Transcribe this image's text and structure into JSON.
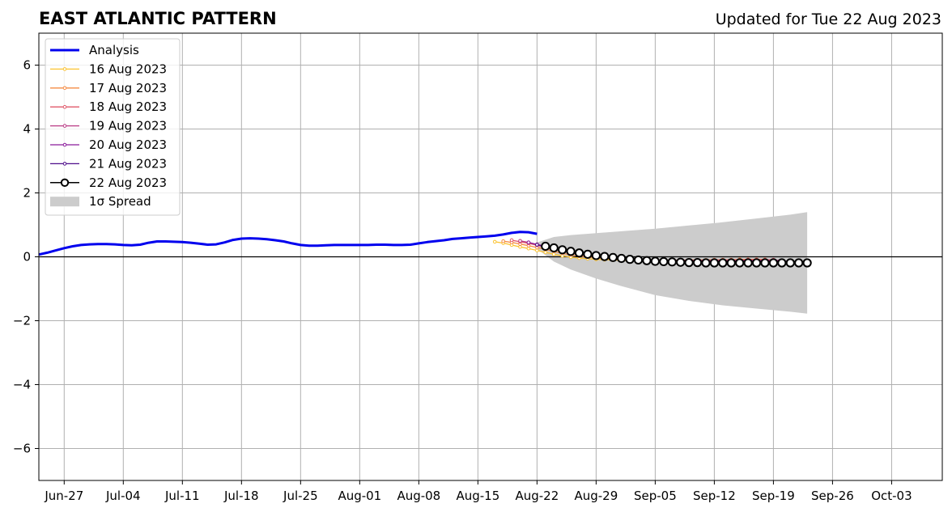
{
  "chart_data": {
    "type": "line",
    "title": "EAST ATLANTIC PATTERN",
    "subtitle": "Updated for Tue 22 Aug 2023",
    "xlabel": "",
    "ylabel": "",
    "x_range": [
      "2023-06-24",
      "2023-10-09"
    ],
    "ylim": [
      -7,
      7
    ],
    "y_ticks": [
      -6,
      -4,
      -2,
      0,
      2,
      4,
      6
    ],
    "y_tick_labels": [
      "−6",
      "−4",
      "−2",
      "0",
      "2",
      "4",
      "6"
    ],
    "x_ticks": [
      "2023-06-27",
      "2023-07-04",
      "2023-07-11",
      "2023-07-18",
      "2023-07-25",
      "2023-08-01",
      "2023-08-08",
      "2023-08-15",
      "2023-08-22",
      "2023-08-29",
      "2023-09-05",
      "2023-09-12",
      "2023-09-19",
      "2023-09-26",
      "2023-10-03"
    ],
    "x_tick_labels": [
      "Jun-27",
      "Jul-04",
      "Jul-11",
      "Jul-18",
      "Jul-25",
      "Aug-01",
      "Aug-08",
      "Aug-15",
      "Aug-22",
      "Aug-29",
      "Sep-05",
      "Sep-12",
      "Sep-19",
      "Sep-26",
      "Oct-03"
    ],
    "grid": true,
    "zero_line": true,
    "legend_position": "upper-left",
    "series": [
      {
        "name": "Analysis",
        "color": "#0000ee",
        "style": "thick-line",
        "x": [
          "2023-06-24",
          "2023-06-25",
          "2023-06-26",
          "2023-06-27",
          "2023-06-28",
          "2023-06-29",
          "2023-06-30",
          "2023-07-01",
          "2023-07-02",
          "2023-07-03",
          "2023-07-04",
          "2023-07-05",
          "2023-07-06",
          "2023-07-07",
          "2023-07-08",
          "2023-07-09",
          "2023-07-10",
          "2023-07-11",
          "2023-07-12",
          "2023-07-13",
          "2023-07-14",
          "2023-07-15",
          "2023-07-16",
          "2023-07-17",
          "2023-07-18",
          "2023-07-19",
          "2023-07-20",
          "2023-07-21",
          "2023-07-22",
          "2023-07-23",
          "2023-07-24",
          "2023-07-25",
          "2023-07-26",
          "2023-07-27",
          "2023-07-28",
          "2023-07-29",
          "2023-07-30",
          "2023-07-31",
          "2023-08-01",
          "2023-08-02",
          "2023-08-03",
          "2023-08-04",
          "2023-08-05",
          "2023-08-06",
          "2023-08-07",
          "2023-08-08",
          "2023-08-09",
          "2023-08-10",
          "2023-08-11",
          "2023-08-12",
          "2023-08-13",
          "2023-08-14",
          "2023-08-15",
          "2023-08-16",
          "2023-08-17",
          "2023-08-18",
          "2023-08-19",
          "2023-08-20",
          "2023-08-21",
          "2023-08-22"
        ],
        "values": [
          0.07,
          0.13,
          0.2,
          0.27,
          0.33,
          0.37,
          0.39,
          0.4,
          0.4,
          0.39,
          0.37,
          0.36,
          0.38,
          0.44,
          0.48,
          0.48,
          0.47,
          0.46,
          0.44,
          0.41,
          0.38,
          0.39,
          0.45,
          0.53,
          0.57,
          0.58,
          0.57,
          0.55,
          0.52,
          0.48,
          0.42,
          0.37,
          0.35,
          0.35,
          0.36,
          0.37,
          0.37,
          0.37,
          0.37,
          0.37,
          0.38,
          0.38,
          0.37,
          0.37,
          0.38,
          0.42,
          0.46,
          0.49,
          0.52,
          0.56,
          0.58,
          0.6,
          0.62,
          0.64,
          0.66,
          0.7,
          0.75,
          0.78,
          0.77,
          0.72
        ]
      },
      {
        "name": "16 Aug 2023",
        "color": "#fbc330",
        "style": "thin-marker",
        "x": [
          "2023-08-17",
          "2023-08-18",
          "2023-08-19",
          "2023-08-20",
          "2023-08-21",
          "2023-08-22",
          "2023-08-23",
          "2023-08-24",
          "2023-08-25",
          "2023-08-26",
          "2023-08-27",
          "2023-08-28",
          "2023-08-29",
          "2023-08-30",
          "2023-08-31",
          "2023-09-01",
          "2023-09-02",
          "2023-09-03",
          "2023-09-04",
          "2023-09-05",
          "2023-09-06",
          "2023-09-07",
          "2023-09-08",
          "2023-09-09",
          "2023-09-10",
          "2023-09-11",
          "2023-09-12",
          "2023-09-13",
          "2023-09-14",
          "2023-09-15",
          "2023-09-16",
          "2023-09-17"
        ],
        "values": [
          0.47,
          0.43,
          0.37,
          0.31,
          0.26,
          0.2,
          0.14,
          0.08,
          0.03,
          -0.01,
          -0.04,
          -0.06,
          -0.08,
          -0.09,
          -0.1,
          -0.11,
          -0.12,
          -0.12,
          -0.13,
          -0.13,
          -0.13,
          -0.13,
          -0.12,
          -0.12,
          -0.11,
          -0.11,
          -0.1,
          -0.1,
          -0.1,
          -0.09,
          -0.09,
          -0.09
        ]
      },
      {
        "name": "17 Aug 2023",
        "color": "#f58c45",
        "style": "thin-marker",
        "x": [
          "2023-08-18",
          "2023-08-19",
          "2023-08-20",
          "2023-08-21",
          "2023-08-22",
          "2023-08-23",
          "2023-08-24",
          "2023-08-25",
          "2023-08-26",
          "2023-08-27",
          "2023-08-28",
          "2023-08-29",
          "2023-08-30",
          "2023-08-31",
          "2023-09-01",
          "2023-09-02",
          "2023-09-03",
          "2023-09-04",
          "2023-09-05",
          "2023-09-06",
          "2023-09-07",
          "2023-09-08",
          "2023-09-09",
          "2023-09-10",
          "2023-09-11",
          "2023-09-12",
          "2023-09-13",
          "2023-09-14",
          "2023-09-15",
          "2023-09-16",
          "2023-09-17",
          "2023-09-18"
        ],
        "values": [
          0.49,
          0.45,
          0.4,
          0.35,
          0.29,
          0.23,
          0.17,
          0.11,
          0.06,
          0.02,
          -0.01,
          -0.03,
          -0.05,
          -0.07,
          -0.08,
          -0.09,
          -0.1,
          -0.1,
          -0.11,
          -0.11,
          -0.11,
          -0.11,
          -0.1,
          -0.1,
          -0.1,
          -0.09,
          -0.09,
          -0.09,
          -0.08,
          -0.08,
          -0.08,
          -0.08
        ]
      },
      {
        "name": "18 Aug 2023",
        "color": "#e0586a",
        "style": "thin-marker",
        "x": [
          "2023-08-19",
          "2023-08-20",
          "2023-08-21",
          "2023-08-22",
          "2023-08-23",
          "2023-08-24",
          "2023-08-25",
          "2023-08-26",
          "2023-08-27",
          "2023-08-28",
          "2023-08-29",
          "2023-08-30",
          "2023-08-31",
          "2023-09-01",
          "2023-09-02",
          "2023-09-03",
          "2023-09-04",
          "2023-09-05",
          "2023-09-06",
          "2023-09-07",
          "2023-09-08",
          "2023-09-09",
          "2023-09-10",
          "2023-09-11",
          "2023-09-12",
          "2023-09-13",
          "2023-09-14",
          "2023-09-15",
          "2023-09-16",
          "2023-09-17",
          "2023-09-18",
          "2023-09-19"
        ],
        "values": [
          0.52,
          0.47,
          0.42,
          0.36,
          0.3,
          0.24,
          0.18,
          0.13,
          0.08,
          0.04,
          0.0,
          -0.03,
          -0.05,
          -0.07,
          -0.08,
          -0.09,
          -0.1,
          -0.1,
          -0.11,
          -0.11,
          -0.11,
          -0.11,
          -0.11,
          -0.11,
          -0.1,
          -0.1,
          -0.1,
          -0.1,
          -0.09,
          -0.09,
          -0.09,
          -0.09
        ]
      },
      {
        "name": "19 Aug 2023",
        "color": "#b93a84",
        "style": "thin-marker",
        "x": [
          "2023-08-20",
          "2023-08-21",
          "2023-08-22",
          "2023-08-23",
          "2023-08-24",
          "2023-08-25",
          "2023-08-26",
          "2023-08-27",
          "2023-08-28",
          "2023-08-29",
          "2023-08-30",
          "2023-08-31",
          "2023-09-01",
          "2023-09-02",
          "2023-09-03",
          "2023-09-04",
          "2023-09-05",
          "2023-09-06",
          "2023-09-07",
          "2023-09-08",
          "2023-09-09",
          "2023-09-10",
          "2023-09-11",
          "2023-09-12",
          "2023-09-13",
          "2023-09-14",
          "2023-09-15",
          "2023-09-16",
          "2023-09-17",
          "2023-09-18",
          "2023-09-19",
          "2023-09-20"
        ],
        "values": [
          0.5,
          0.45,
          0.39,
          0.33,
          0.27,
          0.21,
          0.15,
          0.1,
          0.06,
          0.02,
          -0.01,
          -0.04,
          -0.06,
          -0.08,
          -0.09,
          -0.1,
          -0.11,
          -0.11,
          -0.12,
          -0.12,
          -0.12,
          -0.12,
          -0.12,
          -0.12,
          -0.12,
          -0.12,
          -0.11,
          -0.11,
          -0.11,
          -0.11,
          -0.11,
          -0.11
        ]
      },
      {
        "name": "20 Aug 2023",
        "color": "#8a1a9b",
        "style": "thin-marker",
        "x": [
          "2023-08-21",
          "2023-08-22",
          "2023-08-23",
          "2023-08-24",
          "2023-08-25",
          "2023-08-26",
          "2023-08-27",
          "2023-08-28",
          "2023-08-29",
          "2023-08-30",
          "2023-08-31",
          "2023-09-01",
          "2023-09-02",
          "2023-09-03",
          "2023-09-04",
          "2023-09-05",
          "2023-09-06",
          "2023-09-07",
          "2023-09-08",
          "2023-09-09",
          "2023-09-10",
          "2023-09-11",
          "2023-09-12",
          "2023-09-13",
          "2023-09-14",
          "2023-09-15",
          "2023-09-16",
          "2023-09-17",
          "2023-09-18",
          "2023-09-19",
          "2023-09-20",
          "2023-09-21"
        ],
        "values": [
          0.45,
          0.38,
          0.32,
          0.26,
          0.2,
          0.14,
          0.09,
          0.05,
          0.01,
          -0.02,
          -0.05,
          -0.07,
          -0.09,
          -0.1,
          -0.11,
          -0.12,
          -0.13,
          -0.13,
          -0.14,
          -0.14,
          -0.14,
          -0.14,
          -0.14,
          -0.14,
          -0.14,
          -0.14,
          -0.14,
          -0.14,
          -0.13,
          -0.13,
          -0.13,
          -0.13
        ]
      },
      {
        "name": "21 Aug 2023",
        "color": "#4d0b8a",
        "style": "thin-marker",
        "x": [
          "2023-08-22",
          "2023-08-23",
          "2023-08-24",
          "2023-08-25",
          "2023-08-26",
          "2023-08-27",
          "2023-08-28",
          "2023-08-29",
          "2023-08-30",
          "2023-08-31",
          "2023-09-01",
          "2023-09-02",
          "2023-09-03",
          "2023-09-04",
          "2023-09-05",
          "2023-09-06",
          "2023-09-07",
          "2023-09-08",
          "2023-09-09",
          "2023-09-10",
          "2023-09-11",
          "2023-09-12",
          "2023-09-13",
          "2023-09-14",
          "2023-09-15",
          "2023-09-16",
          "2023-09-17",
          "2023-09-18",
          "2023-09-19",
          "2023-09-20",
          "2023-09-21",
          "2023-09-22"
        ],
        "values": [
          0.38,
          0.32,
          0.26,
          0.2,
          0.15,
          0.1,
          0.06,
          0.02,
          -0.01,
          -0.04,
          -0.07,
          -0.09,
          -0.11,
          -0.12,
          -0.13,
          -0.14,
          -0.15,
          -0.15,
          -0.16,
          -0.16,
          -0.16,
          -0.16,
          -0.16,
          -0.16,
          -0.16,
          -0.16,
          -0.16,
          -0.16,
          -0.16,
          -0.16,
          -0.16,
          -0.16
        ]
      },
      {
        "name": "22 Aug 2023",
        "color": "#000000",
        "style": "open-circle",
        "x": [
          "2023-08-23",
          "2023-08-24",
          "2023-08-25",
          "2023-08-26",
          "2023-08-27",
          "2023-08-28",
          "2023-08-29",
          "2023-08-30",
          "2023-08-31",
          "2023-09-01",
          "2023-09-02",
          "2023-09-03",
          "2023-09-04",
          "2023-09-05",
          "2023-09-06",
          "2023-09-07",
          "2023-09-08",
          "2023-09-09",
          "2023-09-10",
          "2023-09-11",
          "2023-09-12",
          "2023-09-13",
          "2023-09-14",
          "2023-09-15",
          "2023-09-16",
          "2023-09-17",
          "2023-09-18",
          "2023-09-19",
          "2023-09-20",
          "2023-09-21",
          "2023-09-22",
          "2023-09-23"
        ],
        "values": [
          0.33,
          0.28,
          0.22,
          0.17,
          0.12,
          0.08,
          0.04,
          0.01,
          -0.02,
          -0.05,
          -0.08,
          -0.1,
          -0.12,
          -0.14,
          -0.15,
          -0.16,
          -0.17,
          -0.18,
          -0.18,
          -0.19,
          -0.19,
          -0.19,
          -0.19,
          -0.19,
          -0.19,
          -0.19,
          -0.19,
          -0.19,
          -0.19,
          -0.19,
          -0.19,
          -0.19
        ]
      }
    ],
    "spread": {
      "name": "1σ Spread",
      "color": "#cccccc",
      "x": [
        "2023-08-22",
        "2023-08-24",
        "2023-08-26",
        "2023-08-29",
        "2023-09-01",
        "2023-09-05",
        "2023-09-09",
        "2023-09-13",
        "2023-09-17",
        "2023-09-21",
        "2023-09-23"
      ],
      "upper": [
        0.45,
        0.62,
        0.68,
        0.74,
        0.8,
        0.88,
        0.98,
        1.08,
        1.2,
        1.32,
        1.4
      ],
      "lower": [
        0.25,
        -0.15,
        -0.4,
        -0.68,
        -0.92,
        -1.2,
        -1.38,
        -1.52,
        -1.62,
        -1.72,
        -1.78
      ]
    }
  }
}
